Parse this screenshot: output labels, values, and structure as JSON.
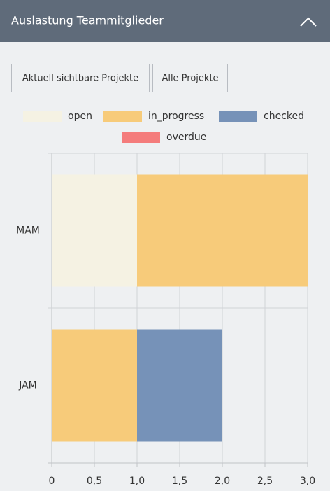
{
  "header": {
    "title": "Auslastung Teammitglieder"
  },
  "buttons": [
    "Aktuell sichtbare Projekte",
    "Alle Projekte"
  ],
  "chart_data": {
    "type": "bar",
    "orientation": "horizontal",
    "stacked": true,
    "categories": [
      "MAM",
      "JAM"
    ],
    "series": [
      {
        "name": "open",
        "color": "#f5f2e3",
        "values": [
          1,
          0
        ]
      },
      {
        "name": "in_progress",
        "color": "#f7cb7a",
        "values": [
          2,
          1
        ]
      },
      {
        "name": "checked",
        "color": "#7692b8",
        "values": [
          0,
          1
        ]
      },
      {
        "name": "overdue",
        "color": "#f47c7c",
        "values": [
          0,
          0
        ]
      }
    ],
    "xlim": [
      0,
      3
    ],
    "xticks": [
      0,
      {
        "value": 0.5,
        "label": "0,5"
      },
      {
        "value": 1,
        "label": "1,0"
      },
      {
        "value": 1.5,
        "label": "1,5"
      },
      {
        "value": 2,
        "label": "2,0"
      },
      {
        "value": 2.5,
        "label": "2,5"
      },
      {
        "value": 3,
        "label": "3,0"
      }
    ],
    "grid": true,
    "legend": "top"
  }
}
